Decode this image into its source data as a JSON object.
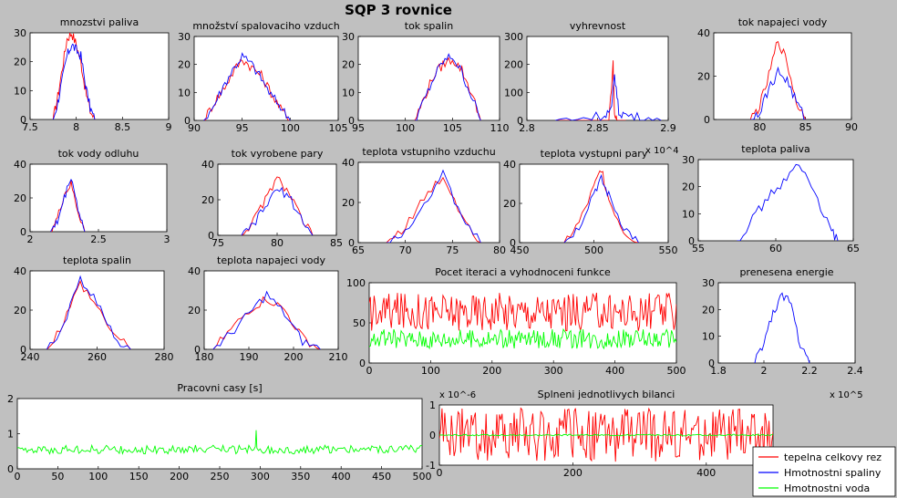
{
  "figure": {
    "title": "SQP 3 rovnice",
    "background": "#c0c0c0",
    "colors": {
      "red": "#ff0000",
      "blue": "#0000ff",
      "green": "#00ff00"
    }
  },
  "legend": {
    "placement": "bottom-right",
    "entries": [
      {
        "label": "tepelna celkovy rez",
        "color": "#ff0000"
      },
      {
        "label": "Hmotnostni spaliny",
        "color": "#0000ff"
      },
      {
        "label": "Hmotnostni voda",
        "color": "#00ff00"
      }
    ]
  },
  "chart_data": [
    {
      "id": "p1",
      "type": "line",
      "title": "mnozstvi paliva",
      "xlim": [
        7.5,
        9
      ],
      "ylim": [
        0,
        30
      ],
      "xticks": [
        "7.5",
        "8",
        "8.5",
        "9"
      ],
      "yticks": [
        "0",
        "10",
        "20",
        "30"
      ],
      "series": [
        {
          "color": "#ff0000",
          "x": [
            7.75,
            7.8,
            7.85,
            7.9,
            7.95,
            8.0,
            8.05,
            8.1,
            8.15,
            8.2
          ],
          "y": [
            0,
            8,
            18,
            28,
            30,
            26,
            20,
            10,
            3,
            0
          ]
        },
        {
          "color": "#0000ff",
          "x": [
            7.75,
            7.8,
            7.85,
            7.9,
            7.95,
            8.0,
            8.05,
            8.1,
            8.15,
            8.2
          ],
          "y": [
            0,
            6,
            14,
            22,
            26,
            24,
            22,
            12,
            4,
            0
          ]
        }
      ]
    },
    {
      "id": "p2",
      "type": "line",
      "title": "množství spalovaciho vzduch",
      "xlim": [
        90,
        105
      ],
      "ylim": [
        0,
        30
      ],
      "xticks": [
        "90",
        "95",
        "100",
        "105"
      ],
      "yticks": [
        "0",
        "10",
        "20",
        "30"
      ],
      "series": [
        {
          "color": "#ff0000",
          "x": [
            91,
            92,
            93,
            94,
            95,
            96,
            97,
            98,
            99,
            100
          ],
          "y": [
            0,
            6,
            11,
            17,
            22,
            19,
            16,
            10,
            4,
            0
          ]
        },
        {
          "color": "#0000ff",
          "x": [
            91,
            92,
            93,
            94,
            95,
            96,
            97,
            98,
            99,
            100
          ],
          "y": [
            0,
            5,
            12,
            18,
            23,
            20,
            15,
            9,
            5,
            0
          ]
        }
      ]
    },
    {
      "id": "p3",
      "type": "line",
      "title": "tok spalin",
      "xlim": [
        95,
        110
      ],
      "ylim": [
        0,
        30
      ],
      "xticks": [
        "95",
        "100",
        "105",
        "110"
      ],
      "yticks": [
        "0",
        "10",
        "20",
        "30"
      ],
      "series": [
        {
          "color": "#ff0000",
          "x": [
            101,
            102,
            103,
            104,
            105,
            106,
            107,
            108
          ],
          "y": [
            0,
            8,
            16,
            20,
            22,
            18,
            10,
            0
          ]
        },
        {
          "color": "#0000ff",
          "x": [
            101,
            102,
            103,
            104,
            105,
            106,
            107,
            108
          ],
          "y": [
            0,
            7,
            15,
            21,
            23,
            17,
            9,
            0
          ]
        }
      ]
    },
    {
      "id": "p4",
      "type": "line",
      "title": "vyhrevnost",
      "xlim": [
        2.8,
        2.9
      ],
      "ylim": [
        0,
        300
      ],
      "xticks": [
        "2.8",
        "2.85",
        "2.9"
      ],
      "yticks": [
        "0",
        "100",
        "200",
        "300"
      ],
      "series": [
        {
          "color": "#ff0000",
          "x": [
            2.82,
            2.85,
            2.858,
            2.861,
            2.862,
            2.864,
            2.87
          ],
          "y": [
            0,
            0,
            0,
            200,
            20,
            0,
            0
          ]
        },
        {
          "color": "#0000ff",
          "x": [
            2.82,
            2.84,
            2.855,
            2.86,
            2.862,
            2.865,
            2.87,
            2.88,
            2.895
          ],
          "y": [
            0,
            10,
            20,
            40,
            170,
            30,
            20,
            10,
            0
          ]
        }
      ]
    },
    {
      "id": "p5",
      "type": "line",
      "title": "tok napajeci vody",
      "xlim": [
        75,
        90
      ],
      "ylim": [
        0,
        40
      ],
      "xticks": [
        "80",
        "85",
        "90"
      ],
      "yticks": [
        "0",
        "20",
        "40"
      ],
      "series": [
        {
          "color": "#ff0000",
          "x": [
            79,
            80,
            81,
            82,
            83,
            84,
            85
          ],
          "y": [
            0,
            6,
            20,
            37,
            26,
            8,
            0
          ]
        },
        {
          "color": "#0000ff",
          "x": [
            79,
            80,
            81,
            82,
            83,
            84,
            85
          ],
          "y": [
            0,
            4,
            14,
            22,
            18,
            8,
            0
          ]
        }
      ]
    },
    {
      "id": "p6",
      "type": "line",
      "title": "tok vody odluhu",
      "xlim": [
        2,
        3
      ],
      "ylim": [
        0,
        40
      ],
      "xticks": [
        "2",
        "2.5",
        "3"
      ],
      "yticks": [
        "0",
        "20",
        "40"
      ],
      "series": [
        {
          "color": "#ff0000",
          "x": [
            2.15,
            2.2,
            2.25,
            2.3,
            2.35,
            2.4
          ],
          "y": [
            0,
            8,
            22,
            28,
            12,
            0
          ]
        },
        {
          "color": "#0000ff",
          "x": [
            2.15,
            2.2,
            2.25,
            2.3,
            2.35,
            2.4
          ],
          "y": [
            0,
            6,
            20,
            33,
            14,
            0
          ]
        }
      ]
    },
    {
      "id": "p7",
      "type": "line",
      "title": "tok vyrobene pary",
      "xlim": [
        75,
        85
      ],
      "ylim": [
        0,
        40
      ],
      "xticks": [
        "75",
        "80",
        "85"
      ],
      "yticks": [
        "0",
        "20",
        "40"
      ],
      "series": [
        {
          "color": "#ff0000",
          "x": [
            77,
            78,
            79,
            80,
            81,
            82,
            83
          ],
          "y": [
            0,
            8,
            20,
            32,
            24,
            10,
            0
          ]
        },
        {
          "color": "#0000ff",
          "x": [
            77,
            78,
            79,
            80,
            81,
            82,
            83
          ],
          "y": [
            0,
            6,
            16,
            26,
            22,
            10,
            0
          ]
        }
      ]
    },
    {
      "id": "p8",
      "type": "line",
      "title": "teplota vstupniho vzduchu",
      "xlim": [
        65,
        80
      ],
      "ylim": [
        0,
        40
      ],
      "xticks": [
        "65",
        "70",
        "75",
        "80"
      ],
      "yticks": [
        "0",
        "20",
        "40"
      ],
      "series": [
        {
          "color": "#ff0000",
          "x": [
            68,
            70,
            72,
            74,
            76,
            78
          ],
          "y": [
            0,
            8,
            22,
            33,
            14,
            0
          ]
        },
        {
          "color": "#0000ff",
          "x": [
            68,
            70,
            72,
            74,
            76,
            78
          ],
          "y": [
            0,
            6,
            20,
            34,
            12,
            0
          ]
        }
      ]
    },
    {
      "id": "p9",
      "type": "line",
      "title": "teplota vystupni pary",
      "xlim": [
        450,
        550
      ],
      "ylim": [
        0,
        40
      ],
      "xticks": [
        "450",
        "500",
        "550"
      ],
      "yticks": [
        "0",
        "20",
        "40"
      ],
      "xexp": "x 10^4",
      "series": [
        {
          "color": "#ff0000",
          "x": [
            480,
            490,
            500,
            505,
            510,
            520,
            530
          ],
          "y": [
            0,
            10,
            28,
            38,
            22,
            6,
            0
          ]
        },
        {
          "color": "#0000ff",
          "x": [
            480,
            490,
            500,
            505,
            510,
            520,
            530
          ],
          "y": [
            0,
            8,
            26,
            32,
            24,
            8,
            0
          ]
        }
      ]
    },
    {
      "id": "p10",
      "type": "line",
      "title": "teplota paliva",
      "xlim": [
        55,
        65
      ],
      "ylim": [
        0,
        30
      ],
      "xticks": [
        "55",
        "60",
        "65"
      ],
      "yticks": [
        "0",
        "10",
        "20",
        "30"
      ],
      "series": [
        {
          "color": "#0000ff",
          "x": [
            57.5,
            58.5,
            59.5,
            60.5,
            61.5,
            62.5,
            63.5,
            64
          ],
          "y": [
            0,
            8,
            16,
            22,
            28,
            18,
            4,
            0
          ]
        }
      ]
    },
    {
      "id": "p11",
      "type": "line",
      "title": "teplota spalin",
      "xlim": [
        240,
        280
      ],
      "ylim": [
        0,
        40
      ],
      "xticks": [
        "240",
        "260",
        "280"
      ],
      "yticks": [
        "0",
        "20",
        "40"
      ],
      "series": [
        {
          "color": "#ff0000",
          "x": [
            245,
            250,
            255,
            260,
            265,
            270
          ],
          "y": [
            0,
            14,
            34,
            22,
            8,
            0
          ]
        },
        {
          "color": "#0000ff",
          "x": [
            245,
            250,
            255,
            260,
            265,
            270
          ],
          "y": [
            0,
            12,
            36,
            24,
            6,
            0
          ]
        }
      ]
    },
    {
      "id": "p12",
      "type": "line",
      "title": "teplota napajeci vody",
      "xlim": [
        180,
        210
      ],
      "ylim": [
        0,
        40
      ],
      "xticks": [
        "180",
        "190",
        "200",
        "210"
      ],
      "yticks": [
        "0",
        "20",
        "40"
      ],
      "series": [
        {
          "color": "#ff0000",
          "x": [
            182,
            186,
            190,
            194,
            198,
            202,
            206
          ],
          "y": [
            0,
            10,
            20,
            26,
            20,
            6,
            0
          ]
        },
        {
          "color": "#0000ff",
          "x": [
            182,
            186,
            190,
            194,
            198,
            202,
            206
          ],
          "y": [
            0,
            8,
            18,
            28,
            18,
            4,
            0
          ]
        }
      ]
    },
    {
      "id": "p13",
      "type": "line",
      "title": "Pocet iteraci a vyhodnoceni funkce",
      "xlim": [
        0,
        500
      ],
      "ylim": [
        0,
        100
      ],
      "xticks": [
        "0",
        "100",
        "200",
        "300",
        "400",
        "500"
      ],
      "yticks": [
        "0",
        "50",
        "100"
      ],
      "series": [
        {
          "color": "#ff0000",
          "band": [
            40,
            88
          ]
        },
        {
          "color": "#00ff00",
          "band": [
            18,
            42
          ]
        }
      ]
    },
    {
      "id": "p14",
      "type": "line",
      "title": "prenesena energie",
      "xlim": [
        1.8,
        2.4
      ],
      "ylim": [
        0,
        30
      ],
      "xticks": [
        "1.8",
        "2",
        "2.2",
        "2.4"
      ],
      "yticks": [
        "0",
        "10",
        "20",
        "30"
      ],
      "xexp": "x 10^5",
      "series": [
        {
          "color": "#0000ff",
          "x": [
            1.96,
            2.0,
            2.04,
            2.08,
            2.12,
            2.16,
            2.2
          ],
          "y": [
            0,
            8,
            18,
            26,
            22,
            6,
            0
          ]
        }
      ]
    },
    {
      "id": "p15",
      "type": "line",
      "title": "Pracovni casy [s]",
      "xlim": [
        0,
        500
      ],
      "ylim": [
        0,
        2
      ],
      "xticks": [
        "0",
        "50",
        "100",
        "150",
        "200",
        "250",
        "300",
        "350",
        "400",
        "450",
        "500"
      ],
      "yticks": [
        "0",
        "1",
        "2"
      ],
      "series": [
        {
          "color": "#00ff00",
          "band": [
            0.4,
            0.7
          ],
          "spike": {
            "x": 295,
            "y": 1.1
          }
        }
      ]
    },
    {
      "id": "p16",
      "type": "line",
      "title": "Splneni jednotlivych bilanci",
      "xlim": [
        0,
        500
      ],
      "ylim": [
        -1,
        1
      ],
      "xticks": [
        "0",
        "200",
        "400"
      ],
      "yticks": [
        "-1",
        "0",
        "1"
      ],
      "yexp": "x 10^-6",
      "series": [
        {
          "color": "#ff0000",
          "band": [
            -0.9,
            0.9
          ]
        },
        {
          "color": "#00ff00",
          "band": [
            0,
            0
          ]
        }
      ]
    }
  ]
}
